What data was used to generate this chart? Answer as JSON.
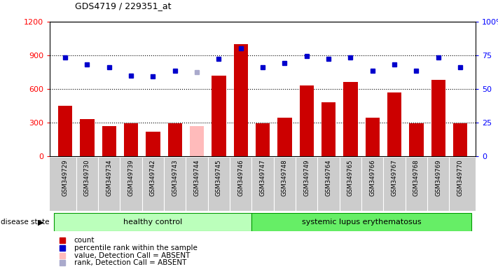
{
  "title": "GDS4719 / 229351_at",
  "samples": [
    "GSM349729",
    "GSM349730",
    "GSM349734",
    "GSM349739",
    "GSM349742",
    "GSM349743",
    "GSM349744",
    "GSM349745",
    "GSM349746",
    "GSM349747",
    "GSM349748",
    "GSM349749",
    "GSM349764",
    "GSM349765",
    "GSM349766",
    "GSM349767",
    "GSM349768",
    "GSM349769",
    "GSM349770"
  ],
  "bar_values": [
    450,
    330,
    270,
    290,
    215,
    295,
    270,
    720,
    1000,
    290,
    340,
    630,
    480,
    660,
    340,
    570,
    290,
    680,
    295
  ],
  "bar_absent": [
    false,
    false,
    false,
    false,
    false,
    false,
    true,
    false,
    false,
    false,
    false,
    false,
    false,
    false,
    false,
    false,
    false,
    false,
    false
  ],
  "percentile_values": [
    880,
    820,
    790,
    720,
    710,
    760,
    750,
    870,
    960,
    790,
    830,
    890,
    870,
    880,
    760,
    820,
    760,
    880,
    790
  ],
  "percentile_absent": [
    false,
    false,
    false,
    false,
    false,
    false,
    true,
    false,
    false,
    false,
    false,
    false,
    false,
    false,
    false,
    false,
    false,
    false,
    false
  ],
  "group_labels": [
    "healthy control",
    "systemic lupus erythematosus"
  ],
  "group_split": 9,
  "group_colors": [
    "#bbffbb",
    "#66ee66"
  ],
  "ylim_left": [
    0,
    1200
  ],
  "ylim_right": [
    0,
    100
  ],
  "yticks_left": [
    0,
    300,
    600,
    900,
    1200
  ],
  "yticks_right": [
    0,
    25,
    50,
    75,
    100
  ],
  "bar_color": "#cc0000",
  "bar_absent_color": "#ffbbbb",
  "dot_color": "#0000cc",
  "dot_absent_color": "#aaaacc",
  "bg_color": "#ffffff",
  "xtick_bg": "#cccccc",
  "disease_state_label": "disease state",
  "legend_items": [
    "count",
    "percentile rank within the sample",
    "value, Detection Call = ABSENT",
    "rank, Detection Call = ABSENT"
  ],
  "legend_colors": [
    "#cc0000",
    "#0000cc",
    "#ffbbbb",
    "#aaaacc"
  ],
  "legend_marker_sizes": [
    7,
    7,
    7,
    7
  ]
}
